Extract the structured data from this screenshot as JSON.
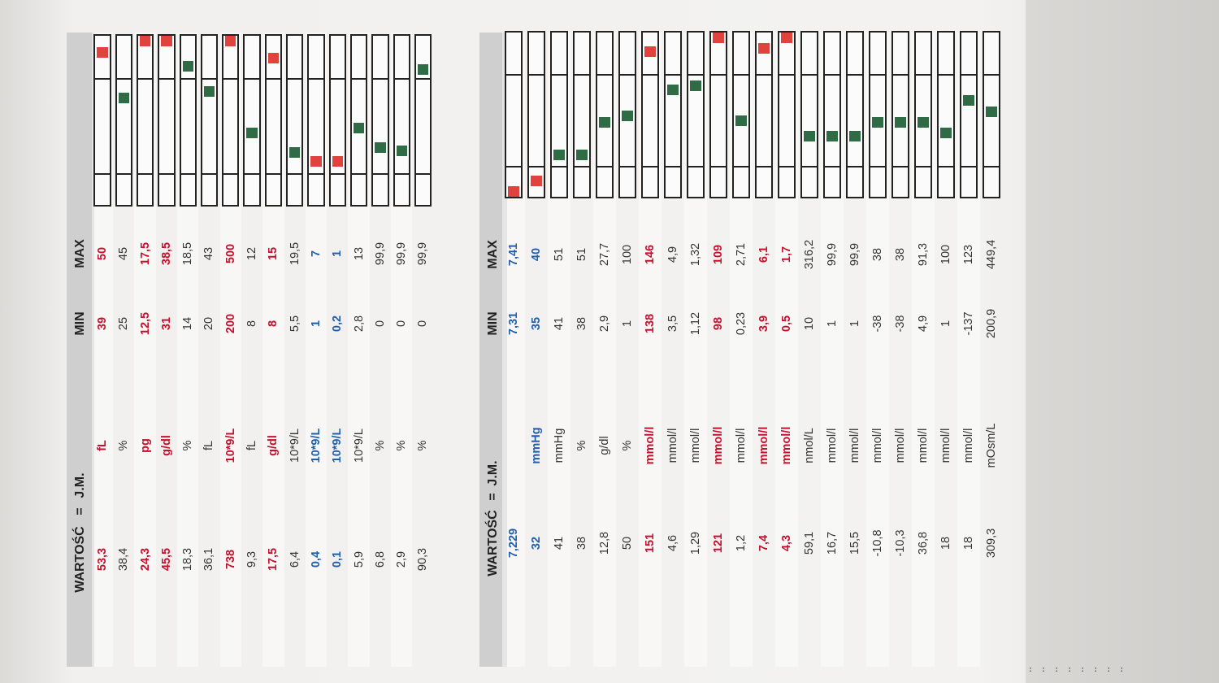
{
  "headers": {
    "value": "WARTOŚĆ",
    "eq": "=",
    "unit": "J.M.",
    "min": "MIN",
    "max": "MAX"
  },
  "tables": [
    {
      "rows": [
        {
          "value": "53,3",
          "unit": "fL",
          "min": "39",
          "max": "50",
          "status": "high",
          "pos": 0.93
        },
        {
          "value": "38,4",
          "unit": "%",
          "min": "25",
          "max": "45",
          "status": "normal",
          "pos": 0.64
        },
        {
          "value": "24,3",
          "unit": "pg",
          "min": "12,5",
          "max": "17,5",
          "status": "high",
          "pos": 1.0
        },
        {
          "value": "45,5",
          "unit": "g/dl",
          "min": "31",
          "max": "38,5",
          "status": "high",
          "pos": 1.0
        },
        {
          "value": "18,3",
          "unit": "%",
          "min": "14",
          "max": "18,5",
          "status": "normal",
          "pos": 0.84
        },
        {
          "value": "36,1",
          "unit": "fL",
          "min": "20",
          "max": "43",
          "status": "normal",
          "pos": 0.68
        },
        {
          "value": "738",
          "unit": "10*9/L",
          "min": "200",
          "max": "500",
          "status": "high",
          "pos": 1.0
        },
        {
          "value": "9,3",
          "unit": "fL",
          "min": "8",
          "max": "12",
          "status": "normal",
          "pos": 0.42
        },
        {
          "value": "17,5",
          "unit": "g/dl",
          "min": "8",
          "max": "15",
          "status": "high",
          "pos": 0.89
        },
        {
          "value": "6,4",
          "unit": "10*9/L",
          "min": "5,5",
          "max": "19,5",
          "status": "normal",
          "pos": 0.3
        },
        {
          "value": "0,4",
          "unit": "10*9/L",
          "min": "1",
          "max": "7",
          "status": "low",
          "pos": 0.24
        },
        {
          "value": "0,1",
          "unit": "10*9/L",
          "min": "0,2",
          "max": "1",
          "status": "low",
          "pos": 0.24
        },
        {
          "value": "5,9",
          "unit": "10*9/L",
          "min": "2,8",
          "max": "13",
          "status": "normal",
          "pos": 0.45
        },
        {
          "value": "6,8",
          "unit": "%",
          "min": "0",
          "max": "99,9",
          "status": "normal",
          "pos": 0.33
        },
        {
          "value": "2,9",
          "unit": "%",
          "min": "0",
          "max": "99,9",
          "status": "normal",
          "pos": 0.31
        },
        {
          "value": "90,3",
          "unit": "%",
          "min": "0",
          "max": "99,9",
          "status": "normal",
          "pos": 0.82
        }
      ]
    },
    {
      "rows": [
        {
          "value": "7,229",
          "unit": "",
          "min": "7,31",
          "max": "7,41",
          "status": "low",
          "pos": 0.0
        },
        {
          "value": "32",
          "unit": "mmHg",
          "min": "35",
          "max": "40",
          "status": "low",
          "pos": 0.07
        },
        {
          "value": "41",
          "unit": "mmHg",
          "min": "41",
          "max": "51",
          "status": "normal",
          "pos": 0.24
        },
        {
          "value": "38",
          "unit": "%",
          "min": "38",
          "max": "51",
          "status": "normal",
          "pos": 0.24
        },
        {
          "value": "12,8",
          "unit": "g/dl",
          "min": "2,9",
          "max": "27,7",
          "status": "normal",
          "pos": 0.45
        },
        {
          "value": "50",
          "unit": "%",
          "min": "1",
          "max": "100",
          "status": "normal",
          "pos": 0.49
        },
        {
          "value": "151",
          "unit": "mmol/l",
          "min": "138",
          "max": "146",
          "status": "high",
          "pos": 0.91
        },
        {
          "value": "4,6",
          "unit": "mmol/l",
          "min": "3,5",
          "max": "4,9",
          "status": "normal",
          "pos": 0.66
        },
        {
          "value": "1,29",
          "unit": "mmol/l",
          "min": "1,12",
          "max": "1,32",
          "status": "normal",
          "pos": 0.69
        },
        {
          "value": "121",
          "unit": "mmol/l",
          "min": "98",
          "max": "109",
          "status": "high",
          "pos": 1.0
        },
        {
          "value": "1,2",
          "unit": "mmol/l",
          "min": "0,23",
          "max": "2,71",
          "status": "normal",
          "pos": 0.46
        },
        {
          "value": "7,4",
          "unit": "mmol/l",
          "min": "3,9",
          "max": "6,1",
          "status": "high",
          "pos": 0.93
        },
        {
          "value": "4,3",
          "unit": "mmol/l",
          "min": "0,5",
          "max": "1,7",
          "status": "high",
          "pos": 1.0
        },
        {
          "value": "59,1",
          "unit": "nmol/L",
          "min": "10",
          "max": "316,2",
          "status": "normal",
          "pos": 0.36
        },
        {
          "value": "16,7",
          "unit": "mmol/l",
          "min": "1",
          "max": "99,9",
          "status": "normal",
          "pos": 0.36
        },
        {
          "value": "15,5",
          "unit": "mmol/l",
          "min": "1",
          "max": "99,9",
          "status": "normal",
          "pos": 0.36
        },
        {
          "value": "-10,8",
          "unit": "mmol/l",
          "min": "-38",
          "max": "38",
          "status": "normal",
          "pos": 0.45
        },
        {
          "value": "-10,3",
          "unit": "mmol/l",
          "min": "-38",
          "max": "38",
          "status": "normal",
          "pos": 0.45
        },
        {
          "value": "36,8",
          "unit": "mmol/l",
          "min": "4,9",
          "max": "91,3",
          "status": "normal",
          "pos": 0.45
        },
        {
          "value": "18",
          "unit": "mmol/l",
          "min": "1",
          "max": "100",
          "status": "normal",
          "pos": 0.38
        },
        {
          "value": "18",
          "unit": "mmol/l",
          "min": "-137",
          "max": "123",
          "status": "normal",
          "pos": 0.59
        },
        {
          "value": "309,3",
          "unit": "mOsm/L",
          "min": "200,9",
          "max": "449,4",
          "status": "normal",
          "pos": 0.52
        }
      ]
    }
  ],
  "footer_dots": ":  :  :  :  :  :  :  :",
  "colors": {
    "high": "#c8102e",
    "low": "#1f5fae",
    "normal": "#333333",
    "marker_green": "#2f6b44",
    "marker_red": "#e0433e"
  }
}
